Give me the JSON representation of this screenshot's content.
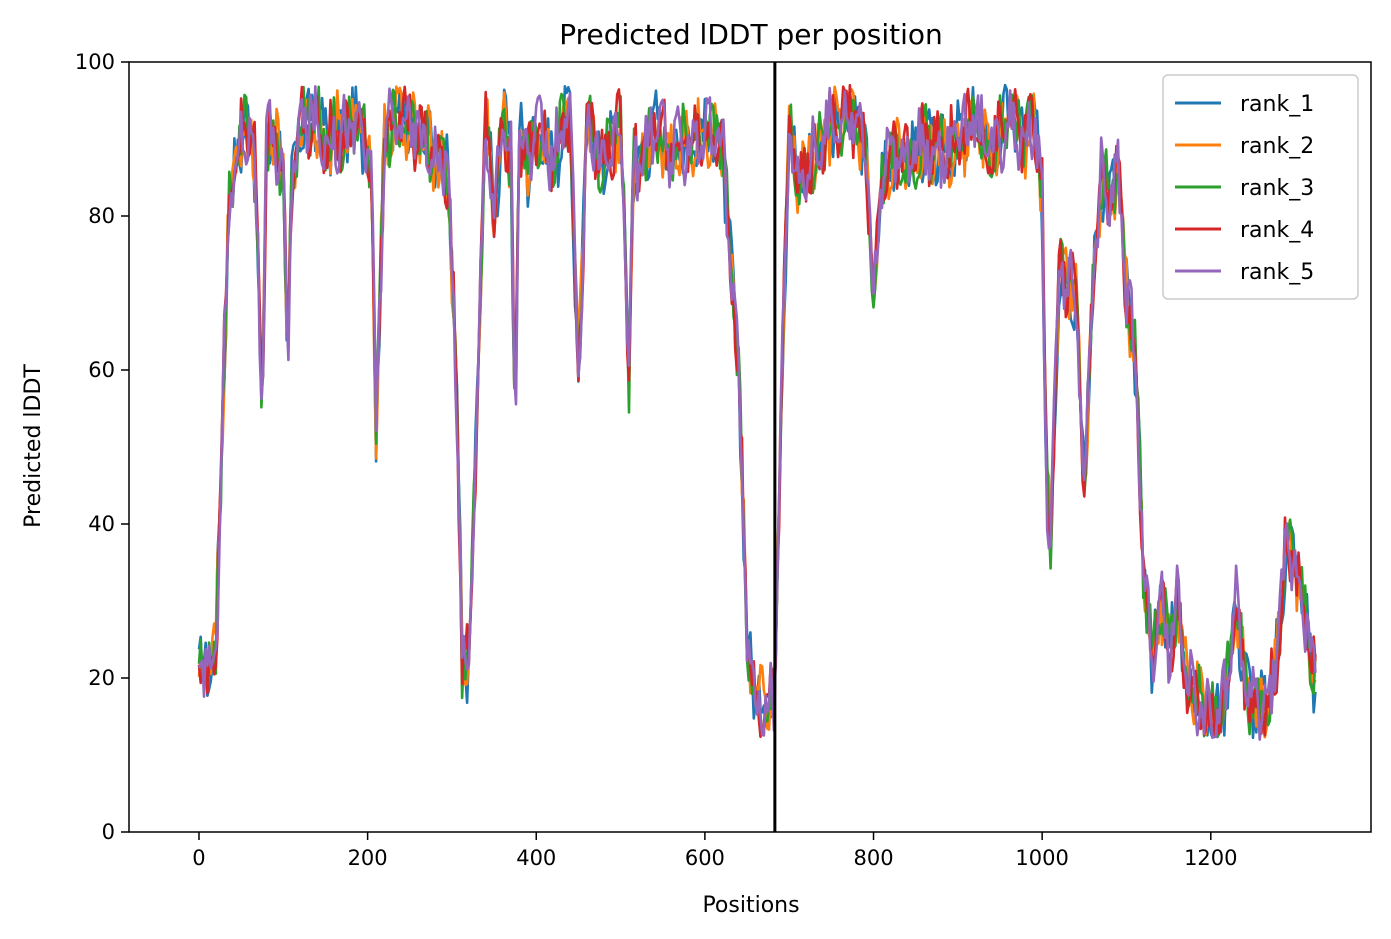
{
  "chart_data": {
    "type": "line",
    "title": "Predicted lDDT per position",
    "xlabel": "Positions",
    "ylabel": "Predicted lDDT",
    "xlim": [
      -83,
      1390
    ],
    "ylim": [
      0,
      100
    ],
    "x_ticks": [
      0,
      200,
      400,
      600,
      800,
      1000,
      1200
    ],
    "y_ticks": [
      0,
      20,
      40,
      60,
      80,
      100
    ],
    "grid": false,
    "legend_position": "top-right",
    "vertical_line_x": 683,
    "colors": {
      "rank_1": "#1f77b4",
      "rank_2": "#ff7f0e",
      "rank_3": "#2ca02c",
      "rank_4": "#d62728",
      "rank_5": "#9467bd",
      "divider": "#000000"
    },
    "base_profile": {
      "x": [
        0,
        10,
        20,
        28,
        35,
        45,
        55,
        65,
        70,
        75,
        80,
        90,
        100,
        105,
        110,
        120,
        130,
        150,
        170,
        190,
        205,
        210,
        220,
        240,
        260,
        280,
        295,
        305,
        312,
        320,
        330,
        340,
        350,
        360,
        370,
        375,
        380,
        390,
        400,
        420,
        440,
        450,
        460,
        480,
        500,
        510,
        515,
        520,
        540,
        560,
        580,
        600,
        620,
        640,
        650,
        660,
        670,
        683,
        690,
        700,
        710,
        730,
        750,
        770,
        790,
        800,
        810,
        820,
        840,
        860,
        880,
        900,
        920,
        940,
        960,
        980,
        990,
        1000,
        1005,
        1010,
        1020,
        1030,
        1040,
        1050,
        1060,
        1070,
        1080,
        1090,
        1100,
        1110,
        1120,
        1130,
        1140,
        1150,
        1160,
        1170,
        1180,
        1190,
        1200,
        1210,
        1220,
        1230,
        1240,
        1250,
        1260,
        1270,
        1280,
        1290,
        1300,
        1310,
        1325
      ],
      "y": [
        21,
        21,
        23,
        55,
        80,
        88,
        92,
        90,
        75,
        52,
        90,
        89,
        87,
        58,
        84,
        92,
        93,
        90,
        91,
        92,
        86,
        52,
        90,
        93,
        91,
        88,
        86,
        60,
        23,
        22,
        55,
        94,
        80,
        92,
        88,
        52,
        91,
        86,
        92,
        87,
        94,
        58,
        92,
        87,
        92,
        60,
        88,
        86,
        92,
        88,
        90,
        91,
        90,
        60,
        25,
        18,
        16,
        18,
        55,
        92,
        85,
        88,
        92,
        94,
        90,
        70,
        85,
        88,
        87,
        90,
        88,
        90,
        92,
        88,
        93,
        90,
        93,
        82,
        45,
        38,
        73,
        72,
        70,
        45,
        70,
        85,
        82,
        86,
        70,
        62,
        35,
        22,
        30,
        24,
        30,
        20,
        18,
        16,
        14,
        15,
        20,
        30,
        20,
        17,
        16,
        17,
        25,
        38,
        35,
        30,
        18
      ]
    },
    "series": [
      {
        "name": "rank_1"
      },
      {
        "name": "rank_2"
      },
      {
        "name": "rank_3"
      },
      {
        "name": "rank_4"
      },
      {
        "name": "rank_5"
      }
    ]
  }
}
